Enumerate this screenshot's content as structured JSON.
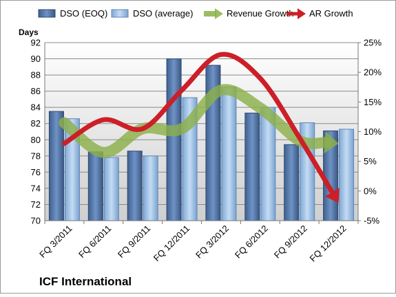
{
  "chart_data": {
    "type": "bar",
    "title": "",
    "company": "ICF International",
    "ylabel": "Days",
    "ylim": [
      70,
      92
    ],
    "yticks": [
      70,
      72,
      74,
      76,
      78,
      80,
      82,
      84,
      86,
      88,
      90,
      92
    ],
    "y2lim": [
      -5,
      25
    ],
    "y2ticks": [
      "-5%",
      "0%",
      "5%",
      "10%",
      "15%",
      "20%",
      "25%"
    ],
    "y2values": [
      -5,
      0,
      5,
      10,
      15,
      20,
      25
    ],
    "grid": true,
    "legend_position": "top",
    "categories": [
      "FQ 3/2011",
      "FQ 6/2011",
      "FQ 9/2011",
      "FQ 12/2011",
      "FQ 3/2012",
      "FQ 6/2012",
      "FQ 9/2012",
      "FQ 12/2012"
    ],
    "series": [
      {
        "name": "DSO (EOQ)",
        "kind": "bar",
        "axis": "left",
        "color": "#4a6fa5",
        "values": [
          83.5,
          78.5,
          78.6,
          90.0,
          89.2,
          83.3,
          79.4,
          81.1
        ]
      },
      {
        "name": "DSO (average)",
        "kind": "bar",
        "axis": "left",
        "color": "#9cc3ea",
        "values": [
          82.6,
          77.8,
          78.0,
          85.2,
          86.5,
          84.0,
          82.1,
          81.3
        ]
      },
      {
        "name": "Revenue Growth",
        "kind": "arrow-line",
        "axis": "right",
        "color": "#8cb04a",
        "values": [
          11.5,
          6.5,
          10.5,
          10.5,
          17.0,
          14.0,
          8.5,
          8.0
        ]
      },
      {
        "name": "AR Growth",
        "kind": "arrow-line",
        "axis": "right",
        "color": "#cc1f27",
        "values": [
          8.0,
          12.0,
          10.5,
          17.0,
          23.0,
          19.0,
          9.0,
          -2.0
        ]
      }
    ]
  }
}
